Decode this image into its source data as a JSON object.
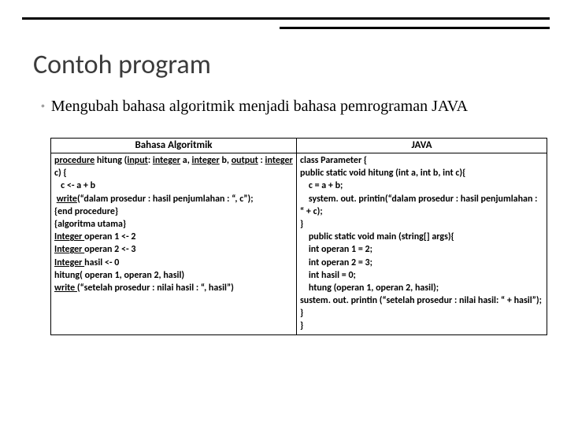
{
  "slide": {
    "title": "Contoh program",
    "bullet": "Mengubah bahasa algoritmik menjadi bahasa pemrograman JAVA"
  },
  "table": {
    "headers": [
      "Bahasa Algoritmik",
      "JAVA"
    ],
    "col_widths": [
      "312px",
      "318px"
    ],
    "left_lines": [
      [
        {
          "t": "procedure",
          "u": true
        },
        {
          "t": " hitung (",
          "u": false
        },
        {
          "t": "input",
          "u": true
        },
        {
          "t": ": ",
          "u": false
        },
        {
          "t": "integer",
          "u": true
        },
        {
          "t": " a, ",
          "u": false
        },
        {
          "t": "integer",
          "u": true
        },
        {
          "t": " b, ",
          "u": false
        },
        {
          "t": "output",
          "u": true
        },
        {
          "t": " : ",
          "u": false
        },
        {
          "t": "integer",
          "u": true
        },
        {
          "t": " c) {",
          "u": false
        }
      ],
      [
        {
          "t": "   c <- a + b",
          "u": false
        }
      ],
      [
        {
          "t": " ",
          "u": false
        },
        {
          "t": "write",
          "u": true
        },
        {
          "t": "(“dalam prosedur : hasil penjumlahan : “, c”);",
          "u": false
        }
      ],
      [
        {
          "t": "{end procedure}",
          "u": false
        }
      ],
      [
        {
          "t": "{algoritma utama}",
          "u": false
        }
      ],
      [
        {
          "t": "Integer ",
          "u": true
        },
        {
          "t": "operan 1 <- 2",
          "u": false
        }
      ],
      [
        {
          "t": "Integer ",
          "u": true
        },
        {
          "t": "operan 2 <- 3",
          "u": false
        }
      ],
      [
        {
          "t": "Integer ",
          "u": true
        },
        {
          "t": "hasil <- 0",
          "u": false
        }
      ],
      [
        {
          "t": "hitung( operan 1, operan 2, hasil)",
          "u": false
        }
      ],
      [
        {
          "t": "write ",
          "u": true
        },
        {
          "t": "(“setelah prosedur : nilai hasil : “, hasil”)",
          "u": false
        }
      ]
    ],
    "right_lines": [
      [
        {
          "t": "class Parameter {",
          "u": false
        }
      ],
      [
        {
          "t": "public static void hitung (int a, int b, int c){",
          "u": false
        }
      ],
      [
        {
          "t": "    c = a + b;",
          "u": false
        }
      ],
      [
        {
          "t": "    system. out. printin(“dalam prosedur : hasil penjumlahan : “ + c);",
          "u": false
        }
      ],
      [
        {
          "t": "}",
          "u": false
        }
      ],
      [
        {
          "t": "    public static void main (string[] args){",
          "u": false
        }
      ],
      [
        {
          "t": "    int operan 1 = 2;",
          "u": false
        }
      ],
      [
        {
          "t": "    int operan 2 = 3;",
          "u": false
        }
      ],
      [
        {
          "t": "    int hasil = 0;",
          "u": false
        }
      ],
      [
        {
          "t": "    htung (operan 1, operan 2, hasil);",
          "u": false
        }
      ],
      [
        {
          "t": "sustem. out. printin (“setelah prosedur : nilai hasil: “ + hasil”);",
          "u": false
        }
      ],
      [
        {
          "t": "}",
          "u": false
        }
      ],
      [
        {
          "t": "}",
          "u": false
        }
      ]
    ]
  },
  "styling": {
    "title_color": "#3b3b3b",
    "title_fontsize": 34,
    "bullet_fontsize": 20,
    "table_fontsize": 12,
    "header_fontsize": 13,
    "rule_color": "#000000",
    "bg_color": "#ffffff"
  }
}
